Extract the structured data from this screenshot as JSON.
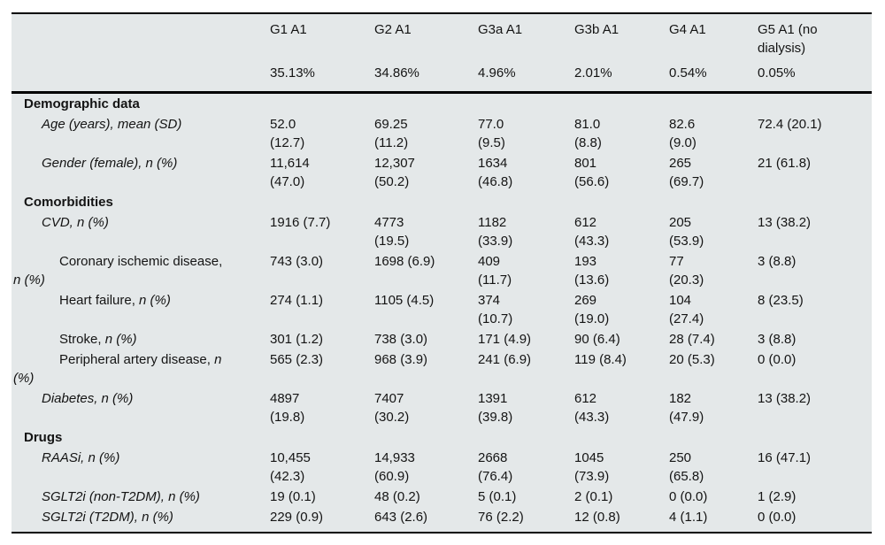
{
  "table": {
    "colors": {
      "background": "#e4e8e9",
      "rule": "#000000",
      "text": "#141414"
    },
    "columns": [
      {
        "name": "",
        "pct": ""
      },
      {
        "name": "G1 A1",
        "pct": "35.13%"
      },
      {
        "name": "G2 A1",
        "pct": "34.86%"
      },
      {
        "name": "G3a A1",
        "pct": "4.96%"
      },
      {
        "name": "G3b A1",
        "pct": "2.01%"
      },
      {
        "name": "G4 A1",
        "pct": "0.54%"
      },
      {
        "name": "G5 A1 (no\ndialysis)",
        "pct": "0.05%"
      }
    ],
    "sections": [
      {
        "heading": "Demographic data",
        "rows": [
          {
            "level": 1,
            "label_parts": [
              {
                "t": "Age (years), mean (SD)",
                "i": true
              }
            ],
            "values": [
              "52.0\n(12.7)",
              "69.25\n(11.2)",
              "77.0\n(9.5)",
              "81.0\n(8.8)",
              "82.6\n(9.0)",
              "72.4 (20.1)"
            ]
          },
          {
            "level": 1,
            "label_parts": [
              {
                "t": "Gender (female), n (%)",
                "i": true
              }
            ],
            "values": [
              "11,614\n(47.0)",
              "12,307\n(50.2)",
              "1634\n(46.8)",
              "801\n(56.6)",
              "265\n(69.7)",
              "21 (61.8)"
            ]
          }
        ]
      },
      {
        "heading": "Comorbidities",
        "rows": [
          {
            "level": 1,
            "label_parts": [
              {
                "t": "CVD, n (%)",
                "i": true
              }
            ],
            "values": [
              "1916 (7.7)",
              "4773\n(19.5)",
              "1182\n(33.9)",
              "612\n(43.3)",
              "205\n(53.9)",
              "13 (38.2)"
            ]
          },
          {
            "level": 2,
            "label_parts": [
              {
                "t": "Coronary ischemic disease,\n",
                "i": false
              },
              {
                "t": "n (%)",
                "i": true
              }
            ],
            "values": [
              "743 (3.0)",
              "1698 (6.9)",
              "409\n(11.7)",
              "193\n(13.6)",
              "77\n(20.3)",
              "3 (8.8)"
            ]
          },
          {
            "level": 2,
            "label_parts": [
              {
                "t": "Heart failure, ",
                "i": false
              },
              {
                "t": "n (%)",
                "i": true
              }
            ],
            "values": [
              "274 (1.1)",
              "1105 (4.5)",
              "374\n(10.7)",
              "269\n(19.0)",
              "104\n(27.4)",
              "8 (23.5)"
            ]
          },
          {
            "level": 2,
            "label_parts": [
              {
                "t": "Stroke, ",
                "i": false
              },
              {
                "t": "n (%)",
                "i": true
              }
            ],
            "values": [
              "301 (1.2)",
              "738 (3.0)",
              "171 (4.9)",
              "90 (6.4)",
              "28 (7.4)",
              "3 (8.8)"
            ]
          },
          {
            "level": 2,
            "label_parts": [
              {
                "t": "Peripheral artery disease, ",
                "i": false
              },
              {
                "t": "n",
                "i": true
              },
              {
                "t": "\n",
                "i": false
              },
              {
                "t": "(%)",
                "i": true
              }
            ],
            "values": [
              "565 (2.3)",
              "968 (3.9)",
              "241 (6.9)",
              "119 (8.4)",
              "20 (5.3)",
              "0 (0.0)"
            ]
          },
          {
            "level": 1,
            "label_parts": [
              {
                "t": "Diabetes, n (%)",
                "i": true
              }
            ],
            "values": [
              "4897\n(19.8)",
              "7407\n(30.2)",
              "1391\n(39.8)",
              "612\n(43.3)",
              "182\n(47.9)",
              "13 (38.2)"
            ]
          }
        ]
      },
      {
        "heading": "Drugs",
        "rows": [
          {
            "level": 1,
            "label_parts": [
              {
                "t": "RAASi, n (%)",
                "i": true
              }
            ],
            "values": [
              "10,455\n(42.3)",
              "14,933\n(60.9)",
              "2668\n(76.4)",
              "1045\n(73.9)",
              "250\n(65.8)",
              "16 (47.1)"
            ]
          },
          {
            "level": 1,
            "label_parts": [
              {
                "t": "SGLT2i (non-T2DM), n (%)",
                "i": true
              }
            ],
            "values": [
              "19 (0.1)",
              "48 (0.2)",
              "5 (0.1)",
              "2 (0.1)",
              "0 (0.0)",
              "1 (2.9)"
            ]
          },
          {
            "level": 1,
            "label_parts": [
              {
                "t": "SGLT2i (T2DM), n (%)",
                "i": true
              }
            ],
            "values": [
              "229 (0.9)",
              "643 (2.6)",
              "76 (2.2)",
              "12 (0.8)",
              "4 (1.1)",
              "0 (0.0)"
            ]
          }
        ]
      }
    ]
  }
}
